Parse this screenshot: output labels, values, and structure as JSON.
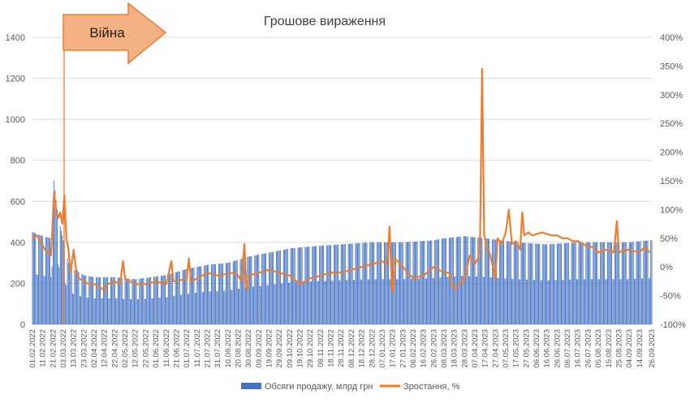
{
  "chart_data": {
    "type": "bar+line",
    "title": "Грошове вираження",
    "annotation": "Війна",
    "colors": {
      "bars": "#4472C4",
      "line": "#ED7D31",
      "annotation_fill": "#F4B183",
      "annotation_stroke": "#ED7D31"
    },
    "y_left": {
      "min": 0,
      "max": 1400,
      "ticks": [
        "0",
        "200",
        "400",
        "600",
        "800",
        "1000",
        "1200",
        "1400"
      ]
    },
    "y_right": {
      "min": -100,
      "max": 400,
      "ticks": [
        "-100%",
        "-50%",
        "0%",
        "50%",
        "100%",
        "150%",
        "200%",
        "250%",
        "300%",
        "350%",
        "400%"
      ]
    },
    "x_tick_labels": [
      "01.02.2022",
      "11.02.2022",
      "21.02.2022",
      "03.03.2022",
      "13.03.2022",
      "23.03.2022",
      "02.04.2022",
      "12.04.2022",
      "22.04.2022",
      "02.05.2022",
      "12.05.2022",
      "22.05.2022",
      "01.06.2022",
      "11.06.2022",
      "21.06.2022",
      "01.07.2022",
      "11.07.2022",
      "21.07.2022",
      "31.07.2022",
      "10.08.2022",
      "20.08.2022",
      "30.08.2022",
      "09.09.2022",
      "19.09.2022",
      "29.09.2022",
      "09.10.2022",
      "19.10.2022",
      "29.10.2022",
      "08.11.2022",
      "18.11.2022",
      "28.11.2022",
      "08.12.2022",
      "18.12.2022",
      "28.12.2022",
      "07.01.2023",
      "17.01.2023",
      "27.01.2023",
      "06.02.2023",
      "16.02.2023",
      "26.02.2023",
      "08.03.2023",
      "18.03.2023",
      "28.03.2023",
      "07.04.2023",
      "17.04.2023",
      "27.04.2023",
      "07.05.2023",
      "17.05.2023",
      "27.05.2023",
      "06.06.2023",
      "16.06.2023",
      "26.06.2023",
      "06.07.2023",
      "16.07.2023",
      "26.07.2023",
      "05.08.2023",
      "15.08.2023",
      "25.08.2023",
      "04.09.2023",
      "14.09.2023",
      "26.09.2023"
    ],
    "series": [
      {
        "name": "Обсяги продажу, млрд грн",
        "type": "bar",
        "axis": "left",
        "anchors_day_value": [
          [
            0,
            450
          ],
          [
            10,
            430
          ],
          [
            18,
            420
          ],
          [
            21,
            700
          ],
          [
            24,
            560
          ],
          [
            27,
            480
          ],
          [
            30,
            410
          ],
          [
            35,
            300
          ],
          [
            40,
            270
          ],
          [
            50,
            240
          ],
          [
            60,
            230
          ],
          [
            80,
            230
          ],
          [
            100,
            220
          ],
          [
            130,
            240
          ],
          [
            150,
            270
          ],
          [
            170,
            290
          ],
          [
            190,
            300
          ],
          [
            210,
            330
          ],
          [
            230,
            350
          ],
          [
            250,
            370
          ],
          [
            270,
            380
          ],
          [
            300,
            390
          ],
          [
            330,
            400
          ],
          [
            360,
            400
          ],
          [
            390,
            410
          ],
          [
            400,
            420
          ],
          [
            420,
            430
          ],
          [
            440,
            420
          ],
          [
            470,
            400
          ],
          [
            500,
            390
          ],
          [
            530,
            400
          ],
          [
            560,
            400
          ],
          [
            580,
            400
          ],
          [
            600,
            410
          ]
        ],
        "weekend_level": 0.55
      },
      {
        "name": "Зростання, %",
        "type": "line",
        "axis": "right",
        "anchors_day_value": [
          [
            0,
            50
          ],
          [
            4,
            55
          ],
          [
            8,
            45
          ],
          [
            12,
            30
          ],
          [
            15,
            25
          ],
          [
            18,
            20
          ],
          [
            21,
            130
          ],
          [
            23,
            100
          ],
          [
            25,
            85
          ],
          [
            27,
            95
          ],
          [
            29,
            75
          ],
          [
            31,
            125
          ],
          [
            33,
            50
          ],
          [
            35,
            30
          ],
          [
            37,
            -10
          ],
          [
            40,
            30
          ],
          [
            42,
            0
          ],
          [
            45,
            -20
          ],
          [
            50,
            -25
          ],
          [
            55,
            -30
          ],
          [
            60,
            -30
          ],
          [
            65,
            -35
          ],
          [
            70,
            -40
          ],
          [
            73,
            -30
          ],
          [
            80,
            -25
          ],
          [
            85,
            -30
          ],
          [
            88,
            10
          ],
          [
            90,
            -20
          ],
          [
            95,
            -25
          ],
          [
            100,
            -30
          ],
          [
            110,
            -30
          ],
          [
            120,
            -25
          ],
          [
            130,
            -30
          ],
          [
            135,
            10
          ],
          [
            137,
            -25
          ],
          [
            140,
            -25
          ],
          [
            150,
            -20
          ],
          [
            152,
            15
          ],
          [
            154,
            -25
          ],
          [
            160,
            -20
          ],
          [
            170,
            -10
          ],
          [
            180,
            -15
          ],
          [
            195,
            -10
          ],
          [
            200,
            -15
          ],
          [
            203,
            -25
          ],
          [
            206,
            40
          ],
          [
            208,
            -40
          ],
          [
            210,
            -15
          ],
          [
            220,
            -10
          ],
          [
            230,
            -5
          ],
          [
            240,
            -10
          ],
          [
            250,
            -15
          ],
          [
            260,
            -30
          ],
          [
            270,
            -20
          ],
          [
            280,
            -15
          ],
          [
            290,
            -10
          ],
          [
            300,
            -10
          ],
          [
            310,
            -5
          ],
          [
            320,
            0
          ],
          [
            330,
            5
          ],
          [
            340,
            10
          ],
          [
            345,
            5
          ],
          [
            347,
            70
          ],
          [
            349,
            -20
          ],
          [
            350,
            -45
          ],
          [
            352,
            15
          ],
          [
            355,
            10
          ],
          [
            360,
            0
          ],
          [
            370,
            -20
          ],
          [
            380,
            -15
          ],
          [
            390,
            0
          ],
          [
            400,
            -10
          ],
          [
            405,
            -10
          ],
          [
            410,
            -40
          ],
          [
            415,
            -30
          ],
          [
            420,
            -20
          ],
          [
            425,
            20
          ],
          [
            430,
            5
          ],
          [
            433,
            15
          ],
          [
            435,
            40
          ],
          [
            437,
            345
          ],
          [
            439,
            55
          ],
          [
            441,
            40
          ],
          [
            445,
            20
          ],
          [
            450,
            -20
          ],
          [
            452,
            50
          ],
          [
            456,
            40
          ],
          [
            460,
            60
          ],
          [
            463,
            100
          ],
          [
            466,
            40
          ],
          [
            470,
            45
          ],
          [
            474,
            30
          ],
          [
            476,
            95
          ],
          [
            478,
            55
          ],
          [
            482,
            60
          ],
          [
            486,
            55
          ],
          [
            495,
            60
          ],
          [
            505,
            55
          ],
          [
            510,
            55
          ],
          [
            515,
            50
          ],
          [
            520,
            50
          ],
          [
            525,
            45
          ],
          [
            530,
            45
          ],
          [
            540,
            35
          ],
          [
            545,
            35
          ],
          [
            550,
            25
          ],
          [
            555,
            30
          ],
          [
            560,
            30
          ],
          [
            565,
            25
          ],
          [
            568,
            80
          ],
          [
            570,
            25
          ],
          [
            575,
            30
          ],
          [
            580,
            30
          ],
          [
            590,
            25
          ],
          [
            595,
            35
          ],
          [
            600,
            25
          ]
        ]
      }
    ],
    "legend": [
      "Обсяги продажу, млрд грн",
      "Зростання, %"
    ],
    "legend_position": "bottom"
  }
}
